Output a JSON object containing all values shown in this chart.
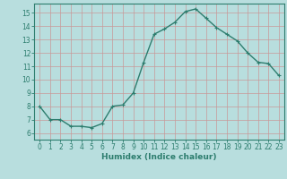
{
  "x": [
    0,
    1,
    2,
    3,
    4,
    5,
    6,
    7,
    8,
    9,
    10,
    11,
    12,
    13,
    14,
    15,
    16,
    17,
    18,
    19,
    20,
    21,
    22,
    23
  ],
  "y": [
    8.0,
    7.0,
    7.0,
    6.5,
    6.5,
    6.4,
    6.7,
    8.0,
    8.1,
    9.0,
    11.3,
    13.4,
    13.8,
    14.3,
    15.1,
    15.3,
    14.6,
    13.9,
    13.4,
    12.9,
    12.0,
    11.3,
    11.2,
    10.3
  ],
  "line_color": "#2d7d6e",
  "marker": "+",
  "marker_size": 3,
  "bg_color": "#b8dede",
  "grid_color": "#c89898",
  "xlabel": "Humidex (Indice chaleur)",
  "ylim": [
    5.5,
    15.7
  ],
  "xlim": [
    -0.5,
    23.5
  ],
  "yticks": [
    6,
    7,
    8,
    9,
    10,
    11,
    12,
    13,
    14,
    15
  ],
  "xticks": [
    0,
    1,
    2,
    3,
    4,
    5,
    6,
    7,
    8,
    9,
    10,
    11,
    12,
    13,
    14,
    15,
    16,
    17,
    18,
    19,
    20,
    21,
    22,
    23
  ],
  "xlabel_fontsize": 6.5,
  "tick_fontsize": 5.5,
  "line_width": 1.0
}
